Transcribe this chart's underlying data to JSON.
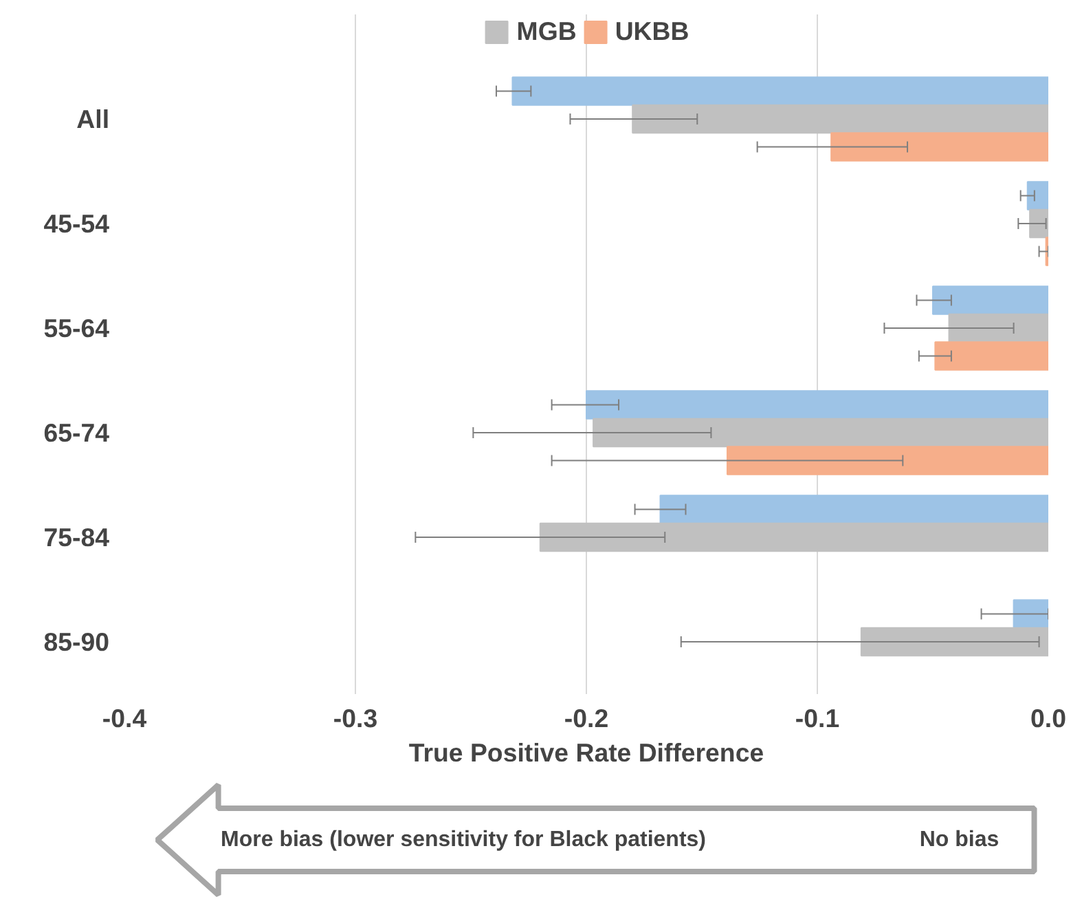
{
  "chart_data": {
    "type": "bar",
    "orientation": "horizontal",
    "xlabel": "True Positive Rate Difference",
    "categories": [
      "All",
      "45-54",
      "55-64",
      "65-74",
      "75-84",
      "85-90"
    ],
    "series": [
      {
        "color": "#9dc3e6",
        "values": [
          -0.232,
          -0.009,
          -0.05,
          -0.2,
          -0.168,
          -0.015
        ],
        "errors": [
          [
            -0.239,
            -0.224
          ],
          [
            -0.012,
            -0.006
          ],
          [
            -0.057,
            -0.042
          ],
          [
            -0.215,
            -0.186
          ],
          [
            -0.179,
            -0.157
          ],
          [
            -0.029,
            0.0
          ]
        ]
      },
      {
        "name": "MGB",
        "color": "#c0c0c0",
        "values": [
          -0.18,
          -0.008,
          -0.043,
          -0.197,
          -0.22,
          -0.081
        ],
        "errors": [
          [
            -0.207,
            -0.152
          ],
          [
            -0.013,
            -0.001
          ],
          [
            -0.071,
            -0.015
          ],
          [
            -0.249,
            -0.146
          ],
          [
            -0.274,
            -0.166
          ],
          [
            -0.159,
            -0.004
          ]
        ]
      },
      {
        "name": "UKBB",
        "color": "#f6ae8a",
        "values": [
          -0.094,
          -0.001,
          -0.049,
          -0.139,
          null,
          null
        ],
        "errors": [
          [
            -0.126,
            -0.061
          ],
          [
            -0.004,
            0.0
          ],
          [
            -0.056,
            -0.042
          ],
          [
            -0.215,
            -0.063
          ],
          null,
          null
        ]
      }
    ],
    "xlim": [
      -0.4,
      0.0
    ],
    "xticks": [
      -0.4,
      -0.3,
      -0.2,
      -0.1,
      {
        "value": 0,
        "label": "0.0"
      }
    ],
    "grid": "x",
    "legend": "top",
    "annotations": [
      "More bias (lower sensitivity for Black patients)",
      "No bias"
    ]
  }
}
